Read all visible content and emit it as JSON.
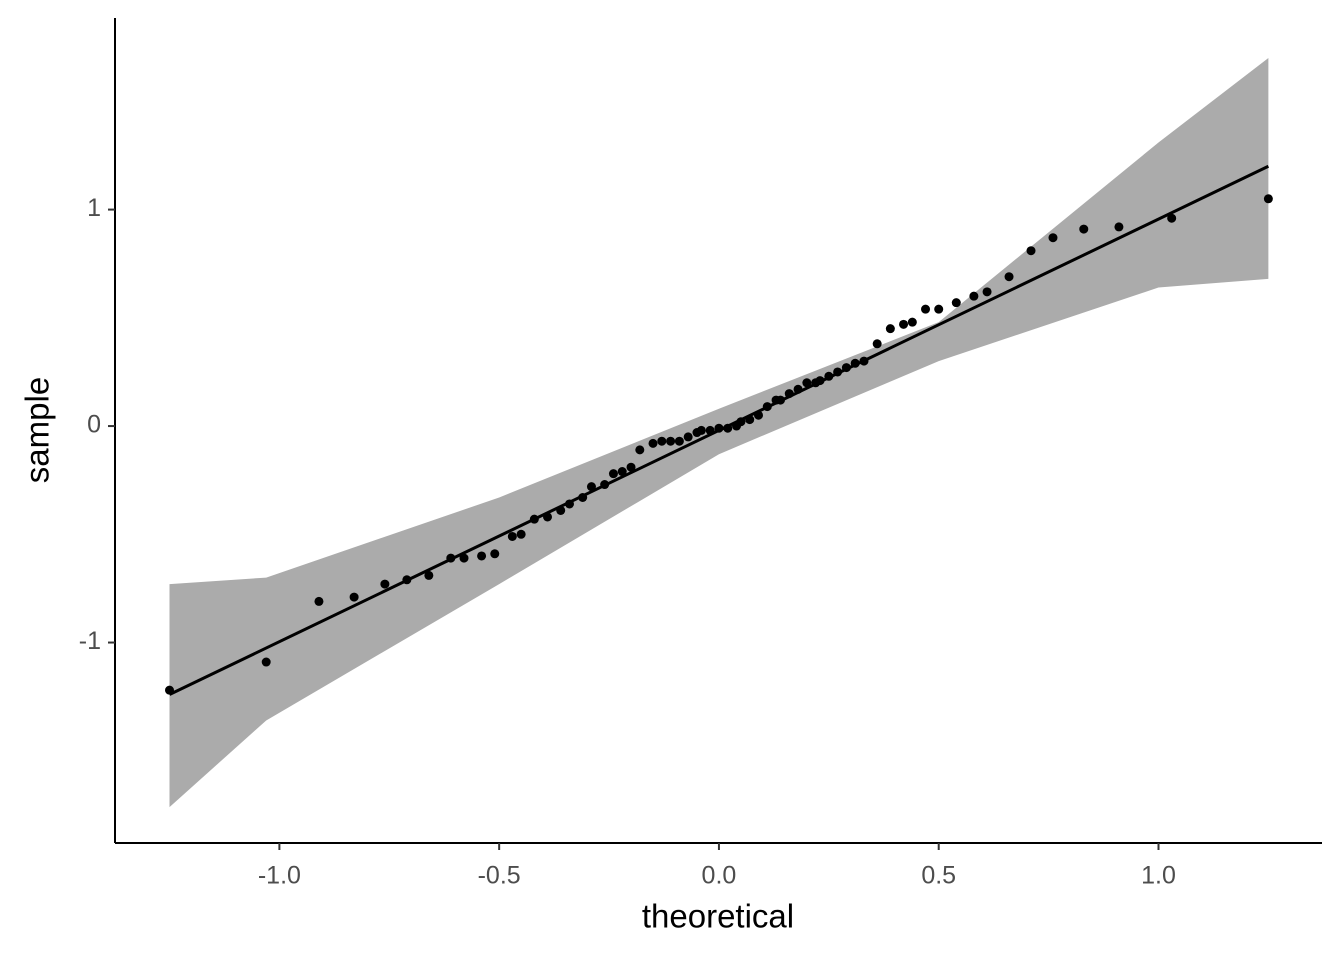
{
  "chart_data": {
    "type": "qq",
    "x_label": "theoretical",
    "y_label": "sample",
    "xlim": [
      -1.374,
      1.372
    ],
    "ylim": [
      -1.926,
      1.885
    ],
    "xticks": [
      {
        "value": -1.0,
        "label": "-1.0"
      },
      -0.5,
      {
        "value": 0.0,
        "label": "0.0"
      },
      0.5,
      {
        "value": 1.0,
        "label": "1.0"
      }
    ],
    "yticks": [
      -1,
      0,
      1
    ],
    "point_color": "#000000",
    "line_color": "#000000",
    "band_color": "#ababab",
    "points": {
      "x": [
        -1.25,
        -1.03,
        -0.91,
        -0.83,
        -0.76,
        -0.71,
        -0.66,
        -0.61,
        -0.58,
        -0.54,
        -0.51,
        -0.47,
        -0.45,
        -0.42,
        -0.39,
        -0.36,
        -0.34,
        -0.31,
        -0.29,
        -0.26,
        -0.24,
        -0.22,
        -0.2,
        -0.18,
        -0.15,
        -0.13,
        -0.11,
        -0.09,
        -0.07,
        -0.05,
        -0.04,
        -0.02,
        0.0,
        0.02,
        0.04,
        0.05,
        0.07,
        0.09,
        0.11,
        0.13,
        0.14,
        0.16,
        0.18,
        0.2,
        0.22,
        0.23,
        0.25,
        0.27,
        0.29,
        0.31,
        0.33,
        0.36,
        0.39,
        0.42,
        0.44,
        0.47,
        0.5,
        0.54,
        0.58,
        0.61,
        0.66,
        0.71,
        0.76,
        0.83,
        0.91,
        1.03,
        1.25
      ],
      "y": [
        -1.22,
        -1.09,
        -0.81,
        -0.79,
        -0.73,
        -0.71,
        -0.69,
        -0.61,
        -0.61,
        -0.6,
        -0.59,
        -0.51,
        -0.5,
        -0.43,
        -0.42,
        -0.39,
        -0.36,
        -0.33,
        -0.28,
        -0.27,
        -0.22,
        -0.21,
        -0.19,
        -0.11,
        -0.08,
        -0.07,
        -0.07,
        -0.07,
        -0.05,
        -0.03,
        -0.02,
        -0.02,
        -0.01,
        -0.01,
        0.0,
        0.02,
        0.03,
        0.05,
        0.09,
        0.12,
        0.12,
        0.15,
        0.17,
        0.2,
        0.2,
        0.21,
        0.23,
        0.25,
        0.27,
        0.29,
        0.3,
        0.38,
        0.45,
        0.47,
        0.48,
        0.54,
        0.54,
        0.57,
        0.6,
        0.62,
        0.69,
        0.81,
        0.87,
        0.91,
        0.92,
        0.96,
        1.05
      ]
    },
    "line": {
      "x": [
        -1.25,
        1.25
      ],
      "y": [
        -1.24,
        1.2
      ]
    },
    "band": {
      "x": [
        -1.25,
        -1.03,
        -0.5,
        0.0,
        0.5,
        1.0,
        1.25
      ],
      "upper": [
        -0.73,
        -0.7,
        -0.33,
        0.08,
        0.48,
        1.31,
        1.7
      ],
      "lower": [
        -1.76,
        -1.36,
        -0.73,
        -0.13,
        0.3,
        0.64,
        0.68
      ]
    }
  }
}
